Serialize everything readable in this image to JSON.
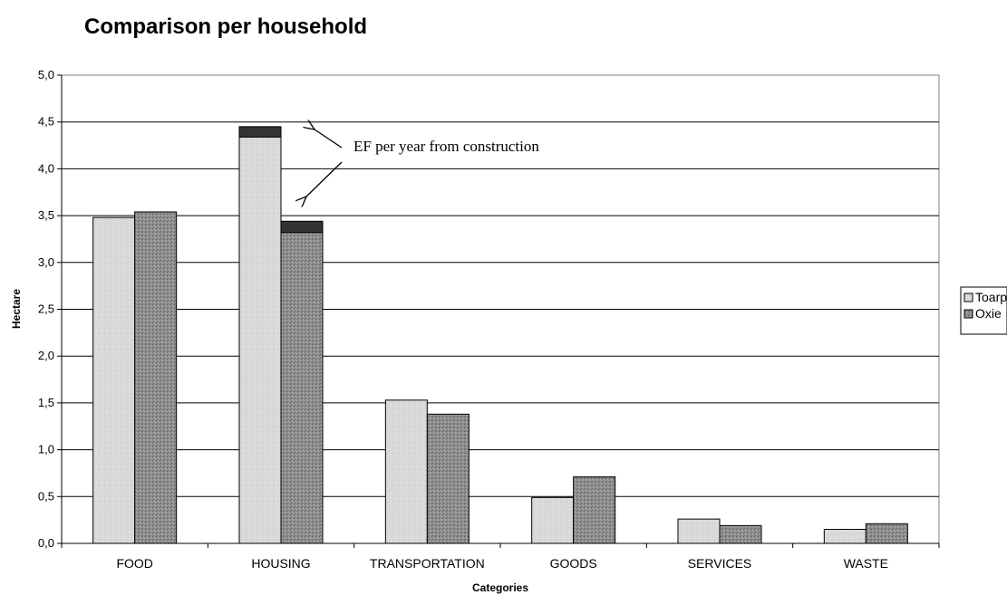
{
  "chart_data": {
    "type": "bar",
    "title": "Comparison per household",
    "xlabel": "Categories",
    "ylabel": "Hectare",
    "categories": [
      "FOOD",
      "HOUSING",
      "TRANSPORTATION",
      "GOODS",
      "SERVICES",
      "WASTE"
    ],
    "series": [
      {
        "name": "Toarp",
        "values": [
          3.48,
          4.34,
          1.53,
          0.49,
          0.26,
          0.15
        ],
        "color": "#d9d9d9"
      },
      {
        "name": "Oxie",
        "values": [
          3.54,
          3.32,
          1.38,
          0.71,
          0.19,
          0.21
        ],
        "color": "#8c8c8c"
      }
    ],
    "stacked_extra": {
      "label": "EF per year from construction",
      "values": [
        {
          "category": "HOUSING",
          "series": "Toarp",
          "value": 0.11
        },
        {
          "category": "HOUSING",
          "series": "Oxie",
          "value": 0.12
        }
      ],
      "color": "#333333"
    },
    "ylim": [
      0,
      5
    ],
    "y_ticks": [
      "0,0",
      "0,5",
      "1,0",
      "1,5",
      "2,0",
      "2,5",
      "3,0",
      "3,5",
      "4,0",
      "4,5",
      "5,0"
    ],
    "grid": true,
    "legend_position": "right"
  }
}
